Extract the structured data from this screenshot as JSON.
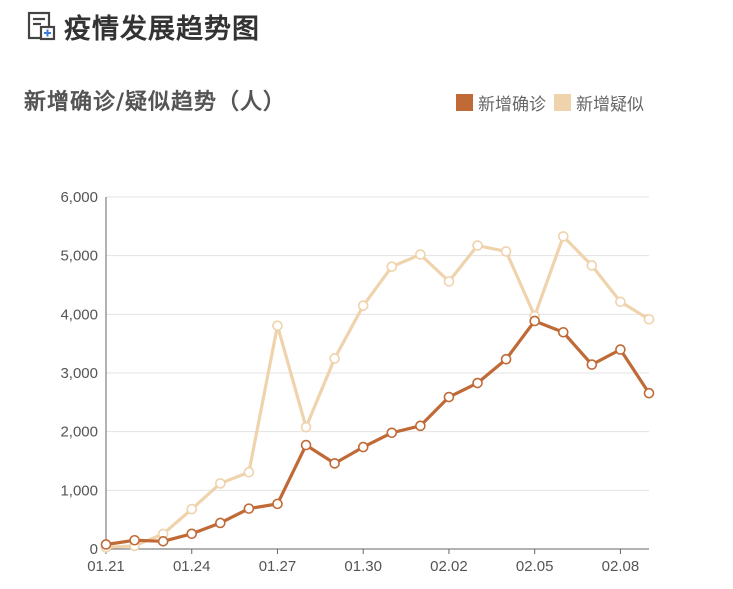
{
  "header": {
    "icon": "document-chart-icon",
    "title": "疫情发展趋势图"
  },
  "chart_data": {
    "type": "line",
    "title": "新增确诊/疑似趋势（人）",
    "xlabel": "",
    "ylabel": "",
    "x": [
      "01.21",
      "01.22",
      "01.23",
      "01.24",
      "01.25",
      "01.26",
      "01.27",
      "01.28",
      "01.29",
      "01.30",
      "01.31",
      "02.01",
      "02.02",
      "02.03",
      "02.04",
      "02.05",
      "02.06",
      "02.07",
      "02.08",
      "02.09"
    ],
    "x_tick_labels": [
      "01.21",
      "01.24",
      "01.27",
      "01.30",
      "02.02",
      "02.05",
      "02.08"
    ],
    "y_tick_labels": [
      "0",
      "1,000",
      "2,000",
      "3,000",
      "4,000",
      "5,000",
      "6,000"
    ],
    "ylim": [
      0,
      6000
    ],
    "grid": true,
    "legend_position": "top-right",
    "series": [
      {
        "name": "新增确诊",
        "color": "#c06a38",
        "values": [
          77,
          149,
          131,
          259,
          444,
          688,
          769,
          1771,
          1459,
          1737,
          1981,
          2099,
          2590,
          2829,
          3235,
          3887,
          3694,
          3143,
          3399,
          2656
        ]
      },
      {
        "name": "新增疑似",
        "color": "#efd3ad",
        "values": [
          27,
          53,
          257,
          680,
          1118,
          1309,
          3806,
          2077,
          3248,
          4148,
          4812,
          5019,
          4562,
          5173,
          5072,
          3971,
          5328,
          4833,
          4214,
          3916
        ]
      }
    ]
  }
}
